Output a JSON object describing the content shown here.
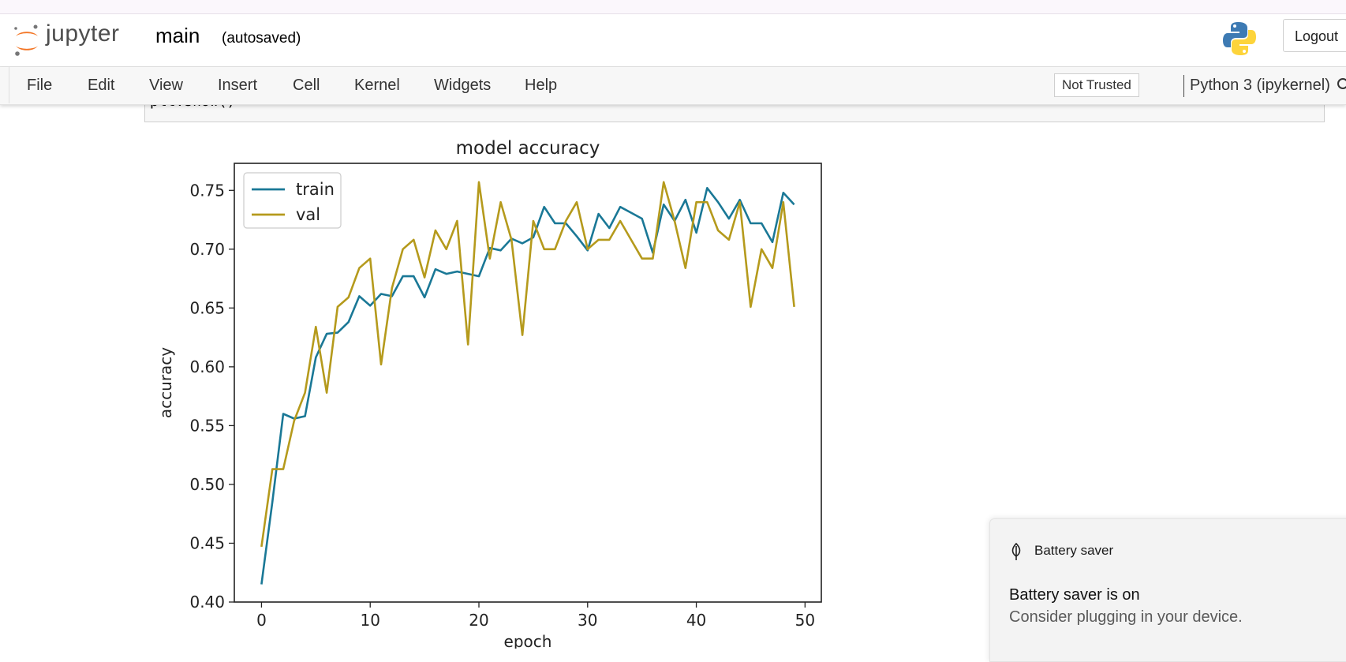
{
  "header": {
    "logo_text": "jupyter",
    "notebook_name": "main",
    "autosave_status": "(autosaved)",
    "logout_label": "Logout",
    "logo_icon": "jupyter-logo-icon",
    "kernel_logo_icon": "python-logo-icon"
  },
  "menubar": {
    "items": [
      "File",
      "Edit",
      "View",
      "Insert",
      "Cell",
      "Kernel",
      "Widgets",
      "Help"
    ],
    "trust_label": "Not Trusted",
    "kernel_label": "Python 3 (ipykernel)",
    "kernel_status_icon": "kernel-idle-icon"
  },
  "cell": {
    "code": "plt.show()"
  },
  "chart_data": {
    "type": "line",
    "title": "model accuracy",
    "xlabel": "epoch",
    "ylabel": "accuracy",
    "xlim": [
      -2.5,
      51.5
    ],
    "ylim": [
      0.4,
      0.773
    ],
    "x_ticks": [
      0,
      10,
      20,
      30,
      40,
      50
    ],
    "y_ticks": [
      0.4,
      0.45,
      0.5,
      0.55,
      0.6,
      0.65,
      0.7,
      0.75
    ],
    "grid": false,
    "legend_position": "top-left",
    "series": [
      {
        "name": "train",
        "color": "#1a7896",
        "x": [
          0,
          1,
          2,
          3,
          4,
          5,
          6,
          7,
          8,
          9,
          10,
          11,
          12,
          13,
          14,
          15,
          16,
          17,
          18,
          19,
          20,
          21,
          22,
          23,
          24,
          25,
          26,
          27,
          28,
          29,
          30,
          31,
          32,
          33,
          34,
          35,
          36,
          37,
          38,
          39,
          40,
          41,
          42,
          43,
          44,
          45,
          46,
          47,
          48,
          49
        ],
        "values": [
          0.415,
          0.485,
          0.56,
          0.556,
          0.558,
          0.608,
          0.628,
          0.629,
          0.638,
          0.66,
          0.652,
          0.662,
          0.66,
          0.677,
          0.677,
          0.659,
          0.683,
          0.679,
          0.681,
          0.679,
          0.677,
          0.701,
          0.699,
          0.709,
          0.705,
          0.71,
          0.736,
          0.722,
          0.722,
          0.711,
          0.699,
          0.73,
          0.718,
          0.736,
          0.731,
          0.726,
          0.697,
          0.738,
          0.724,
          0.742,
          0.714,
          0.752,
          0.74,
          0.726,
          0.742,
          0.722,
          0.722,
          0.706,
          0.748,
          0.738
        ]
      },
      {
        "name": "val",
        "color": "#b59a1c",
        "x": [
          0,
          1,
          2,
          3,
          4,
          5,
          6,
          7,
          8,
          9,
          10,
          11,
          12,
          13,
          14,
          15,
          16,
          17,
          18,
          19,
          20,
          21,
          22,
          23,
          24,
          25,
          26,
          27,
          28,
          29,
          30,
          31,
          32,
          33,
          34,
          35,
          36,
          37,
          38,
          39,
          40,
          41,
          42,
          43,
          44,
          45,
          46,
          47,
          48,
          49
        ],
        "values": [
          0.447,
          0.513,
          0.513,
          0.554,
          0.578,
          0.634,
          0.578,
          0.651,
          0.659,
          0.684,
          0.692,
          0.602,
          0.667,
          0.7,
          0.708,
          0.676,
          0.716,
          0.7,
          0.724,
          0.619,
          0.757,
          0.692,
          0.74,
          0.708,
          0.627,
          0.724,
          0.7,
          0.7,
          0.724,
          0.74,
          0.7,
          0.708,
          0.708,
          0.724,
          0.708,
          0.692,
          0.692,
          0.757,
          0.724,
          0.684,
          0.74,
          0.74,
          0.716,
          0.708,
          0.74,
          0.651,
          0.7,
          0.684,
          0.74,
          0.651
        ]
      }
    ]
  },
  "toast": {
    "header": "Battery saver",
    "title": "Battery saver is on",
    "body": "Consider plugging in your device.",
    "icon": "leaf-icon"
  }
}
